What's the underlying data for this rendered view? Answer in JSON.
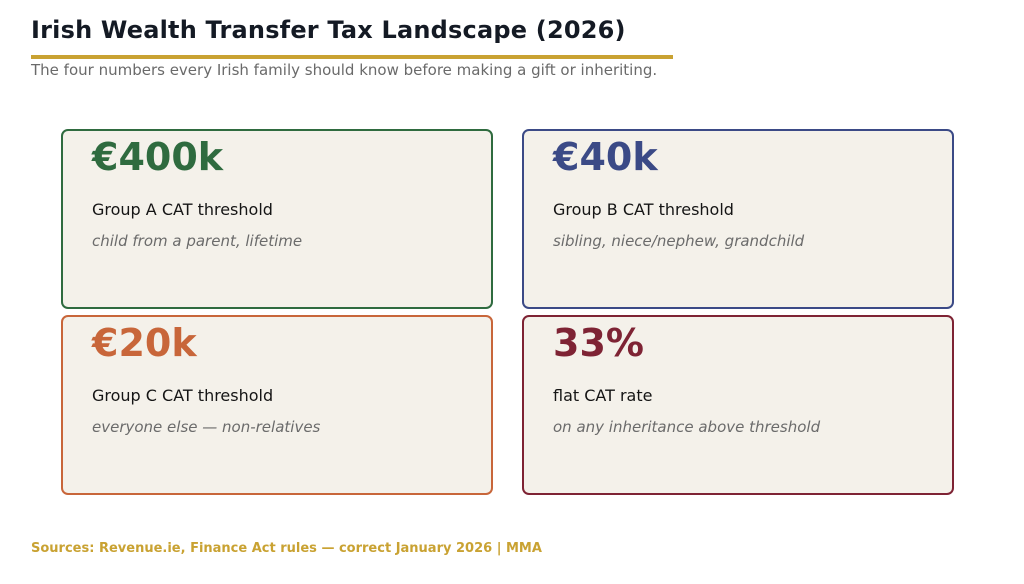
{
  "header": {
    "title": "Irish Wealth Transfer Tax Landscape (2026)",
    "subtitle": "The four numbers every Irish family should know before making a gift or inheriting."
  },
  "colors": {
    "accent_gold": "#c9a232",
    "card_bg": "#f4f1ea"
  },
  "cards": [
    {
      "value": "€400k",
      "label": "Group A CAT threshold",
      "description": "child from a parent, lifetime",
      "color": "#2f6b3f"
    },
    {
      "value": "€40k",
      "label": "Group B CAT threshold",
      "description": "sibling, niece/nephew, grandchild",
      "color": "#3b4a86"
    },
    {
      "value": "€20k",
      "label": "Group C CAT threshold",
      "description": "everyone else — non-relatives",
      "color": "#c8663a"
    },
    {
      "value": "33%",
      "label": "flat CAT rate",
      "description": "on any inheritance above threshold",
      "color": "#7e2334"
    }
  ],
  "footer": {
    "sources": "Sources: Revenue.ie, Finance Act rules — correct January 2026  |  MMA"
  }
}
